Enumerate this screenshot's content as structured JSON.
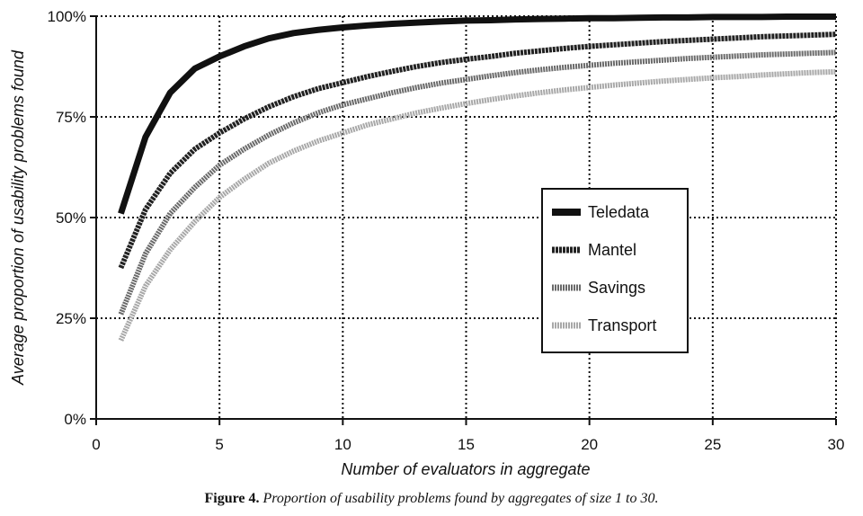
{
  "chart_data": {
    "type": "line",
    "xlabel": "Number of evaluators in aggregate",
    "ylabel": "Average proportion of usability problems found",
    "xlim": [
      0,
      30
    ],
    "ylim": [
      0,
      100
    ],
    "x_ticks": [
      "0",
      "5",
      "10",
      "15",
      "20",
      "25",
      "30"
    ],
    "y_ticks": [
      "0%",
      "25%",
      "50%",
      "75%",
      "100%"
    ],
    "grid": true,
    "legend_position": "center-right",
    "x": [
      1,
      2,
      3,
      4,
      5,
      6,
      7,
      8,
      9,
      10,
      11,
      12,
      13,
      14,
      15,
      16,
      17,
      18,
      19,
      20,
      21,
      22,
      23,
      24,
      25,
      26,
      27,
      28,
      29,
      30
    ],
    "series": [
      {
        "name": "Teledata",
        "color": "#111111",
        "style": "solid-thick",
        "values": [
          51,
          70,
          81,
          87,
          90,
          92.5,
          94.5,
          95.8,
          96.6,
          97.2,
          97.7,
          98.1,
          98.4,
          98.7,
          98.9,
          99.0,
          99.2,
          99.3,
          99.4,
          99.5,
          99.5,
          99.6,
          99.7,
          99.7,
          99.8,
          99.8,
          99.8,
          99.9,
          99.9,
          99.9
        ]
      },
      {
        "name": "Mantel",
        "color": "#222222",
        "style": "dark-textured",
        "values": [
          37.5,
          52,
          61,
          67,
          71,
          74.5,
          77.5,
          80,
          82,
          83.5,
          85,
          86.3,
          87.5,
          88.5,
          89.3,
          90,
          90.8,
          91.4,
          92,
          92.5,
          92.9,
          93.3,
          93.7,
          94,
          94.3,
          94.6,
          94.9,
          95.1,
          95.3,
          95.5
        ]
      },
      {
        "name": "Savings",
        "color": "#6a6a6a",
        "style": "medium-textured",
        "values": [
          26,
          41,
          51,
          57.5,
          63,
          67,
          70.5,
          73.5,
          76,
          78,
          79.5,
          81,
          82.3,
          83.4,
          84.3,
          85.2,
          86,
          86.7,
          87.3,
          87.8,
          88.3,
          88.7,
          89.1,
          89.5,
          89.8,
          90.1,
          90.4,
          90.6,
          90.8,
          91
        ]
      },
      {
        "name": "Transport",
        "color": "#a8a8a8",
        "style": "light-textured",
        "values": [
          19.5,
          33,
          42,
          49,
          55,
          59.5,
          63.5,
          66.5,
          69,
          71,
          73,
          74.5,
          76,
          77.2,
          78.3,
          79.3,
          80.2,
          81,
          81.7,
          82.3,
          82.9,
          83.4,
          83.9,
          84.3,
          84.7,
          85,
          85.4,
          85.7,
          86,
          86.2
        ]
      }
    ]
  },
  "caption": {
    "label": "Figure 4.",
    "text": "Proportion of usability problems found by aggregates of size 1 to 30."
  }
}
